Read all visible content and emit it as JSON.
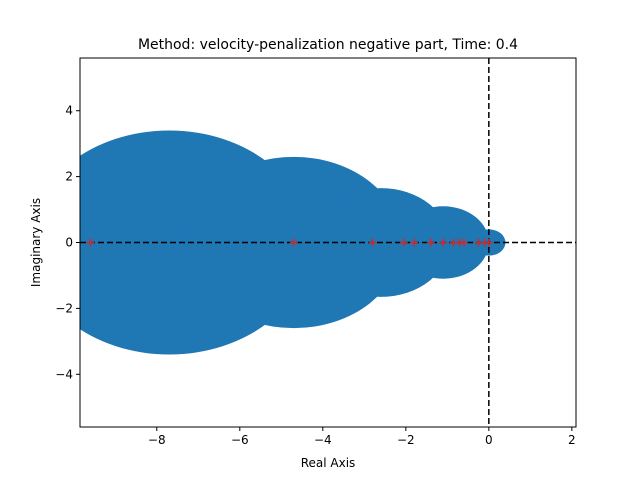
{
  "chart_data": {
    "type": "scatter",
    "title": "Method: velocity-penalization negative part, Time: 0.4",
    "xlabel": "Real Axis",
    "ylabel": "Imaginary Axis",
    "xlim": [
      -9.85,
      2.1
    ],
    "ylim": [
      -5.6,
      5.6
    ],
    "xticks": [
      -8,
      -6,
      -4,
      -2,
      0,
      2
    ],
    "xtick_labels": [
      "−8",
      "−6",
      "−4",
      "−2",
      "0",
      "2"
    ],
    "yticks": [
      -4,
      -2,
      0,
      2,
      4
    ],
    "ytick_labels": [
      "−4",
      "−2",
      "0",
      "2",
      "4"
    ],
    "grid": false,
    "legend": "none",
    "reference_lines": [
      {
        "orientation": "horizontal",
        "value": 0,
        "style": "dashed",
        "color": "#000000"
      },
      {
        "orientation": "vertical",
        "value": 0,
        "style": "dashed",
        "color": "#000000"
      }
    ],
    "discs": {
      "color": "#1f77b4",
      "items": [
        {
          "center": -9.6,
          "radius": 0.9
        },
        {
          "center": -7.7,
          "radius": 3.4
        },
        {
          "center": -4.7,
          "radius": 2.6
        },
        {
          "center": -3.0,
          "radius": 0.9
        },
        {
          "center": -2.6,
          "radius": 1.65
        },
        {
          "center": -1.1,
          "radius": 1.1
        },
        {
          "center": 0.0,
          "radius": 0.4
        }
      ]
    },
    "series": [
      {
        "marker": "plus",
        "color": "#d62728",
        "x": [
          -9.6,
          -4.7,
          -2.8,
          -2.05,
          -1.8,
          -1.4,
          -1.1,
          -0.85,
          -0.7,
          -0.6,
          -0.25,
          -0.1,
          0.0
        ],
        "y": [
          0,
          0,
          0,
          0,
          0,
          0,
          0,
          0,
          0,
          0,
          0,
          0,
          0
        ]
      }
    ]
  }
}
